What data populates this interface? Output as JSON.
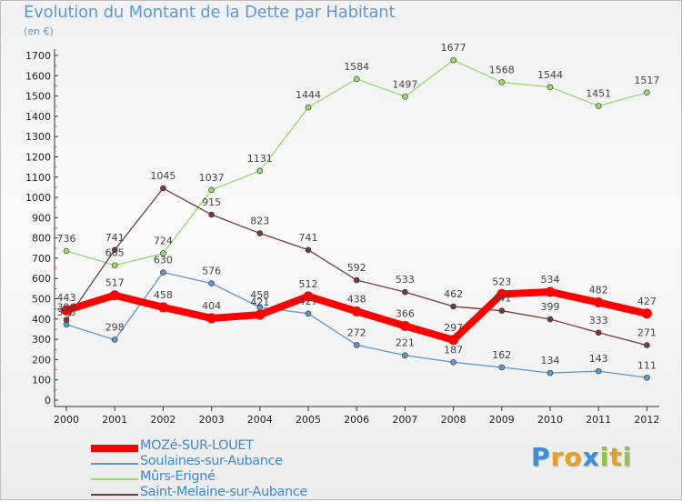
{
  "title": "Evolution du Montant de la Dette par Habitant",
  "subtitle": "(en €)",
  "logo": {
    "text": "Proxiti",
    "letters": [
      {
        "ch": "P",
        "color": "#3a8fd6"
      },
      {
        "ch": "r",
        "color": "#e8a020"
      },
      {
        "ch": "o",
        "color": "#e8a020"
      },
      {
        "ch": "x",
        "color": "#3a8fd6"
      },
      {
        "ch": "i",
        "color": "#8cc63f"
      },
      {
        "ch": "t",
        "color": "#e8a020"
      },
      {
        "ch": "i",
        "color": "#8cc63f"
      }
    ]
  },
  "chart_data": {
    "type": "line",
    "title": "Evolution du Montant de la Dette par Habitant",
    "subtitle": "(en €)",
    "x": [
      "2000",
      "2001",
      "2002",
      "2003",
      "2004",
      "2005",
      "2006",
      "2007",
      "2008",
      "2009",
      "2010",
      "2011",
      "2012"
    ],
    "ylim": [
      0,
      1700
    ],
    "yticks": [
      0,
      100,
      200,
      300,
      400,
      500,
      600,
      700,
      800,
      900,
      1000,
      1100,
      1200,
      1300,
      1400,
      1500,
      1600,
      1700
    ],
    "grid": false,
    "legend_position": "bottom-left",
    "series": [
      {
        "name": "MOZé-SUR-LOUET",
        "color": "#ff0000",
        "emphasis": true,
        "values": [
          443,
          517,
          458,
          404,
          421,
          512,
          438,
          366,
          297,
          523,
          534,
          482,
          427
        ]
      },
      {
        "name": "Soulaines-sur-Aubance",
        "color": "#5a98cf",
        "emphasis": false,
        "values": [
          373,
          298,
          630,
          576,
          458,
          427,
          272,
          221,
          187,
          162,
          134,
          143,
          111
        ]
      },
      {
        "name": "Mûrs-Erigné",
        "color": "#99d96c",
        "emphasis": false,
        "values": [
          736,
          665,
          724,
          1037,
          1131,
          1444,
          1584,
          1497,
          1677,
          1568,
          1544,
          1451,
          1517
        ]
      },
      {
        "name": "Saint-Melaine-sur-Aubance",
        "color": "#7a3a3a",
        "emphasis": false,
        "values": [
          396,
          741,
          1045,
          915,
          823,
          741,
          592,
          533,
          462,
          441,
          399,
          333,
          271
        ]
      }
    ]
  }
}
